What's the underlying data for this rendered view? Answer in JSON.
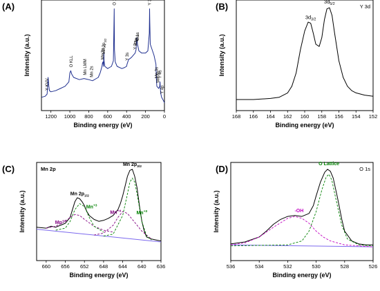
{
  "chart_data": [
    {
      "id": "A",
      "type": "line",
      "panel_label": "(A)",
      "xlabel": "Binding energy (eV)",
      "ylabel": "Intensity (a.u.)",
      "xlim": [
        1300,
        0
      ],
      "xticks": [
        1200,
        1000,
        800,
        600,
        400,
        200,
        0
      ],
      "x_reversed": true,
      "line_color": "#1f2f8f",
      "series": [
        {
          "x": [
            1300,
            1260,
            1240,
            1230,
            1222,
            1215,
            1200,
            1150,
            1100,
            1050,
            1010,
            1000,
            990,
            980,
            960,
            900,
            850,
            800,
            760,
            700,
            680,
            670,
            660,
            655,
            650,
            645,
            641,
            640,
            638,
            630,
            600,
            560,
            540,
            534,
            531,
            530,
            528,
            520,
            500,
            450,
            420,
            400,
            395,
            380,
            350,
            310,
            300,
            295,
            290,
            285,
            270,
            240,
            200,
            175,
            160,
            158,
            157,
            155,
            150,
            110,
            90,
            84,
            82,
            80,
            60,
            50,
            47,
            40,
            30,
            10,
            0
          ],
          "y": [
            0.12,
            0.13,
            0.15,
            0.3,
            0.22,
            0.18,
            0.17,
            0.18,
            0.2,
            0.22,
            0.26,
            0.34,
            0.36,
            0.33,
            0.3,
            0.28,
            0.29,
            0.28,
            0.27,
            0.3,
            0.34,
            0.37,
            0.4,
            0.43,
            0.44,
            0.4,
            0.48,
            0.52,
            0.45,
            0.4,
            0.38,
            0.4,
            0.45,
            0.75,
            0.92,
            0.8,
            0.55,
            0.44,
            0.4,
            0.38,
            0.39,
            0.4,
            0.42,
            0.46,
            0.48,
            0.52,
            0.55,
            0.62,
            0.66,
            0.6,
            0.54,
            0.52,
            0.52,
            0.54,
            0.7,
            0.86,
            0.92,
            0.8,
            0.6,
            0.5,
            0.42,
            0.26,
            0.24,
            0.22,
            0.2,
            0.22,
            0.26,
            0.16,
            0.12,
            0.09,
            0.07
          ]
        }
      ],
      "annotations": [
        {
          "text": "Y KVV",
          "x": 1240
        },
        {
          "text": "O KLL",
          "x": 985
        },
        {
          "text": "Mn LMM",
          "x": 840
        },
        {
          "text": "Mn 2s",
          "x": 770
        },
        {
          "text": "Mn 2p1/2",
          "x": 653
        },
        {
          "text": "Mn 2p3/2",
          "x": 641
        },
        {
          "text": "O 1s",
          "x": 531
        },
        {
          "text": "Y 3s",
          "x": 395
        },
        {
          "text": "Y 3p1/2",
          "x": 312
        },
        {
          "text": "Y 3p3/2",
          "x": 300
        },
        {
          "text": "C 1s",
          "x": 285
        },
        {
          "text": "Y 3d",
          "x": 157
        },
        {
          "text": "Mn 3p",
          "x": 70
        },
        {
          "text": "Mn 3s",
          "x": 84
        },
        {
          "text": "Y 4s",
          "x": 47
        },
        {
          "text": "Y 4p",
          "x": 26
        }
      ]
    },
    {
      "id": "B",
      "type": "line",
      "panel_label": "(B)",
      "corner_label": "Y 3d",
      "xlabel": "Binding energy (eV)",
      "ylabel": "Intensity (a.u.)",
      "xlim": [
        168,
        152
      ],
      "xticks": [
        168,
        166,
        164,
        162,
        160,
        158,
        156,
        154,
        152
      ],
      "x_reversed": true,
      "line_color": "#000000",
      "series": [
        {
          "x": [
            168,
            166,
            164,
            163,
            162,
            161.5,
            161,
            160.5,
            160,
            159.6,
            159.3,
            159,
            158.7,
            158.3,
            158,
            157.7,
            157.4,
            157.1,
            156.8,
            156.5,
            156,
            155.5,
            155,
            154.5,
            154,
            153,
            152
          ],
          "y": [
            0.1,
            0.1,
            0.11,
            0.12,
            0.16,
            0.22,
            0.34,
            0.55,
            0.72,
            0.8,
            0.79,
            0.7,
            0.6,
            0.58,
            0.66,
            0.82,
            0.92,
            0.93,
            0.86,
            0.7,
            0.45,
            0.3,
            0.22,
            0.18,
            0.16,
            0.14,
            0.13
          ]
        }
      ],
      "annotations": [
        {
          "text": "3d3/2",
          "x": 159.3
        },
        {
          "text": "3d5/2",
          "x": 157.1
        }
      ]
    },
    {
      "id": "C",
      "type": "line",
      "panel_label": "(C)",
      "corner_label": "Mn 2p",
      "xlabel": "Binding energy (eV)",
      "ylabel": "Intensity (a.u.)",
      "xlim": [
        662,
        636
      ],
      "xticks": [
        660,
        656,
        652,
        648,
        644,
        640,
        636
      ],
      "x_reversed": true,
      "series": [
        {
          "name": "raw",
          "color": "#000000",
          "x": [
            662,
            660,
            659,
            658,
            657,
            656,
            655,
            654.5,
            654,
            653.5,
            653,
            652.5,
            652,
            651.5,
            651,
            650,
            649,
            648,
            647,
            646,
            645,
            644.5,
            644,
            643.5,
            643,
            642.5,
            642,
            641.5,
            641,
            640.5,
            640,
            639.5,
            639,
            638,
            637,
            636
          ],
          "y": [
            0.34,
            0.33,
            0.35,
            0.34,
            0.36,
            0.38,
            0.44,
            0.52,
            0.6,
            0.64,
            0.63,
            0.6,
            0.56,
            0.5,
            0.46,
            0.42,
            0.4,
            0.41,
            0.43,
            0.46,
            0.52,
            0.58,
            0.66,
            0.76,
            0.86,
            0.92,
            0.93,
            0.86,
            0.74,
            0.56,
            0.4,
            0.3,
            0.24,
            0.22,
            0.21,
            0.2
          ]
        },
        {
          "name": "background",
          "color": "#7b68ee",
          "x": [
            662,
            636
          ],
          "y": [
            0.32,
            0.19
          ]
        },
        {
          "name": "Mn+4 (2p1/2)",
          "color": "#800080",
          "dashed": true,
          "x": [
            660,
            658,
            656,
            655,
            654,
            653,
            652,
            650,
            648,
            646
          ],
          "y": [
            0.33,
            0.35,
            0.4,
            0.44,
            0.47,
            0.46,
            0.42,
            0.35,
            0.31,
            0.29
          ]
        },
        {
          "name": "Mn+3 (2p1/2)",
          "color": "#008000",
          "dashed": true,
          "x": [
            658,
            656,
            655,
            654,
            653,
            652,
            651,
            650,
            648
          ],
          "y": [
            0.31,
            0.33,
            0.4,
            0.52,
            0.58,
            0.55,
            0.44,
            0.35,
            0.29
          ]
        },
        {
          "name": "Mn+4 (2p3/2)",
          "color": "#800080",
          "dashed": true,
          "x": [
            650,
            648,
            646,
            645,
            644,
            643,
            642,
            640,
            638
          ],
          "y": [
            0.26,
            0.28,
            0.36,
            0.44,
            0.5,
            0.48,
            0.42,
            0.3,
            0.22
          ]
        },
        {
          "name": "Mn+3 (2p3/2)",
          "color": "#008000",
          "dashed": true,
          "x": [
            648,
            646,
            644,
            643,
            642.5,
            642,
            641.5,
            641,
            640,
            639,
            638
          ],
          "y": [
            0.25,
            0.27,
            0.46,
            0.68,
            0.8,
            0.84,
            0.8,
            0.68,
            0.4,
            0.25,
            0.21
          ]
        }
      ],
      "annotations": [
        {
          "text": "Mn 2p1/2",
          "x": 653,
          "color": "#000000"
        },
        {
          "text": "Mn 2p3/2",
          "x": 642,
          "color": "#000000"
        },
        {
          "text": "Mn+4",
          "x": 657,
          "color": "#800080"
        },
        {
          "text": "Mn+3",
          "x": 650.5,
          "color": "#008000"
        },
        {
          "text": "Mn+4",
          "x": 645.5,
          "color": "#800080"
        },
        {
          "text": "Mn+3",
          "x": 640,
          "color": "#008000"
        }
      ]
    },
    {
      "id": "D",
      "type": "line",
      "panel_label": "(D)",
      "corner_label": "O 1s",
      "xlabel": "Binding energy (eV)",
      "ylabel": "Intensity (a.u.)",
      "xlim": [
        536,
        526
      ],
      "xticks": [
        536,
        534,
        532,
        530,
        528,
        526
      ],
      "x_reversed": true,
      "series": [
        {
          "name": "raw",
          "color": "#000000",
          "x": [
            536,
            535,
            534,
            533.5,
            533,
            532.5,
            532,
            531.5,
            531,
            530.5,
            530.2,
            530,
            529.7,
            529.4,
            529.2,
            529,
            528.8,
            528.5,
            528.2,
            528,
            527.5,
            527,
            526.5,
            526
          ],
          "y": [
            0.17,
            0.19,
            0.24,
            0.3,
            0.37,
            0.42,
            0.45,
            0.46,
            0.45,
            0.48,
            0.56,
            0.66,
            0.8,
            0.9,
            0.93,
            0.91,
            0.84,
            0.64,
            0.42,
            0.3,
            0.2,
            0.17,
            0.16,
            0.16
          ]
        },
        {
          "name": "background",
          "color": "#7b68ee",
          "x": [
            536,
            526
          ],
          "y": [
            0.16,
            0.14
          ]
        },
        {
          "name": "-OH",
          "color": "#c000c0",
          "dashed": true,
          "x": [
            536,
            535,
            534,
            533,
            532,
            531.5,
            531,
            530.5,
            530,
            529.5,
            529,
            528,
            527,
            526
          ],
          "y": [
            0.16,
            0.18,
            0.24,
            0.34,
            0.43,
            0.45,
            0.43,
            0.38,
            0.3,
            0.24,
            0.2,
            0.16,
            0.15,
            0.14
          ]
        },
        {
          "name": "O Lattice",
          "color": "#008000",
          "dashed": true,
          "x": [
            536,
            532,
            531,
            530.5,
            530,
            529.6,
            529.3,
            529.1,
            528.9,
            528.6,
            528.2,
            527.8,
            527,
            526
          ],
          "y": [
            0.15,
            0.16,
            0.2,
            0.3,
            0.5,
            0.72,
            0.85,
            0.88,
            0.82,
            0.62,
            0.36,
            0.22,
            0.16,
            0.15
          ]
        }
      ],
      "annotations": [
        {
          "text": "-OH",
          "x": 531.2,
          "color": "#c000c0"
        },
        {
          "text": "O Lattice",
          "x": 529.1,
          "color": "#008000"
        }
      ]
    }
  ]
}
